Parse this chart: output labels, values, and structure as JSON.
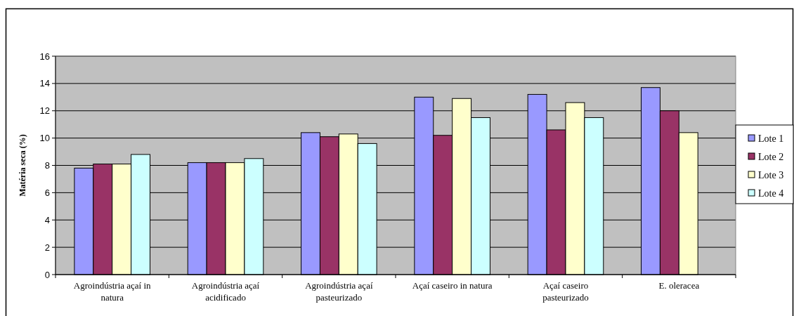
{
  "chart_data": {
    "type": "bar",
    "ylabel": "Matéria seca (%)",
    "categories": [
      "Agroindústria açaí in natura",
      "Agroindústria açaí acidificado",
      "Agroindústria açaí pasteurizado",
      "Açaí caseiro in natura",
      "Açaí caseiro pasteurizado",
      "E. oleracea"
    ],
    "series": [
      {
        "name": "Lote 1",
        "color": "#9999ff",
        "values": [
          7.8,
          8.2,
          10.4,
          13.0,
          13.2,
          13.7
        ]
      },
      {
        "name": "Lote 2",
        "color": "#993366",
        "values": [
          8.1,
          8.2,
          10.1,
          10.2,
          10.6,
          12.0
        ]
      },
      {
        "name": "Lote 3",
        "color": "#ffffcc",
        "values": [
          8.1,
          8.2,
          10.3,
          12.9,
          12.6,
          10.4
        ]
      },
      {
        "name": "Lote 4",
        "color": "#ccffff",
        "values": [
          8.8,
          8.5,
          9.6,
          11.5,
          11.5,
          null
        ]
      }
    ],
    "ylim": [
      0,
      16
    ],
    "yticks": [
      0,
      2,
      4,
      6,
      8,
      10,
      12,
      14,
      16
    ],
    "grid": "y",
    "legend": "right"
  }
}
